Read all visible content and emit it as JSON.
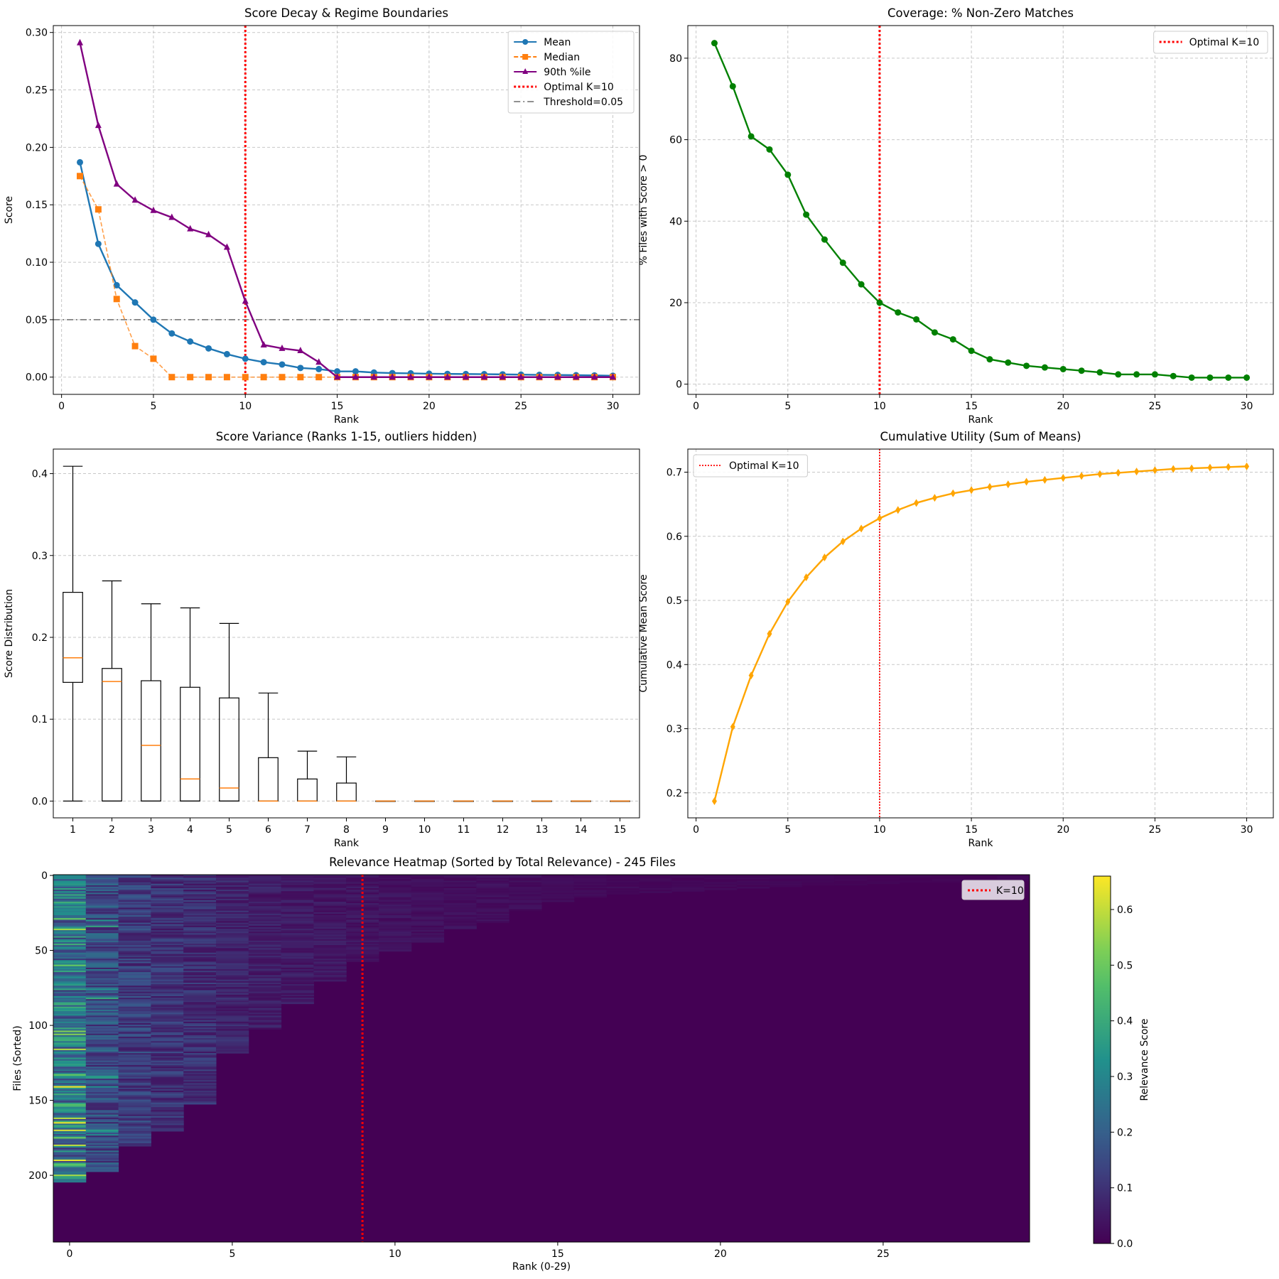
{
  "chart_data": [
    {
      "type": "line",
      "title": "Score Decay & Regime Boundaries",
      "xlabel": "Rank",
      "ylabel": "Score",
      "xlim": [
        -0.45,
        31.45
      ],
      "ylim": [
        -0.015,
        0.306
      ],
      "xticks": [
        0,
        5,
        10,
        15,
        20,
        25,
        30
      ],
      "yticks": [
        0.0,
        0.05,
        0.1,
        0.15,
        0.2,
        0.25,
        0.3
      ],
      "ytick_labels": [
        "0.00",
        "0.05",
        "0.10",
        "0.15",
        "0.20",
        "0.25",
        "0.30"
      ],
      "grid": true,
      "legend_position": "top-right",
      "x": [
        1,
        2,
        3,
        4,
        5,
        6,
        7,
        8,
        9,
        10,
        11,
        12,
        13,
        14,
        15,
        16,
        17,
        18,
        19,
        20,
        21,
        22,
        23,
        24,
        25,
        26,
        27,
        28,
        29,
        30
      ],
      "series": [
        {
          "name": "Mean",
          "color": "#1f77b4",
          "marker": "circle",
          "dash": "solid",
          "values": [
            0.187,
            0.116,
            0.08,
            0.065,
            0.05,
            0.038,
            0.031,
            0.025,
            0.02,
            0.016,
            0.013,
            0.011,
            0.008,
            0.007,
            0.005,
            0.005,
            0.004,
            0.0035,
            0.0033,
            0.003,
            0.0028,
            0.0027,
            0.0026,
            0.0024,
            0.0022,
            0.002,
            0.0019,
            0.0017,
            0.0015,
            0.0012
          ]
        },
        {
          "name": "Median",
          "color": "#ff7f0e",
          "marker": "square",
          "dash": "dashed",
          "values": [
            0.175,
            0.146,
            0.068,
            0.027,
            0.016,
            0,
            0,
            0,
            0,
            0,
            0,
            0,
            0,
            0,
            0,
            0,
            0,
            0,
            0,
            0,
            0,
            0,
            0,
            0,
            0,
            0,
            0,
            0,
            0,
            0
          ]
        },
        {
          "name": "90th %ile",
          "color": "#800080",
          "marker": "triangle",
          "dash": "solid",
          "values": [
            0.291,
            0.219,
            0.168,
            0.154,
            0.145,
            0.139,
            0.129,
            0.124,
            0.113,
            0.066,
            0.028,
            0.025,
            0.023,
            0.013,
            0,
            0,
            0,
            0,
            0,
            0,
            0,
            0,
            0,
            0,
            0,
            0,
            0,
            0,
            0,
            0
          ]
        }
      ],
      "vline": {
        "name": "Optimal K=10",
        "x": 10,
        "color": "#ff0000"
      },
      "hline": {
        "name": "Threshold=0.05",
        "y": 0.05,
        "color": "#808080"
      }
    },
    {
      "type": "line",
      "title": "Coverage: % Non-Zero Matches",
      "xlabel": "Rank",
      "ylabel": "% Files with Score > 0",
      "xlim": [
        -0.45,
        31.45
      ],
      "ylim": [
        -2.5,
        88
      ],
      "xticks": [
        0,
        5,
        10,
        15,
        20,
        25,
        30
      ],
      "yticks": [
        0,
        20,
        40,
        60,
        80
      ],
      "ytick_labels": [
        "0",
        "20",
        "40",
        "60",
        "80"
      ],
      "grid": true,
      "legend_position": "top-right",
      "x": [
        1,
        2,
        3,
        4,
        5,
        6,
        7,
        8,
        9,
        10,
        11,
        12,
        13,
        14,
        15,
        16,
        17,
        18,
        19,
        20,
        21,
        22,
        23,
        24,
        25,
        26,
        27,
        28,
        29,
        30
      ],
      "series": [
        {
          "color": "#008000",
          "marker": "circle",
          "values": [
            83.7,
            73.1,
            60.8,
            57.6,
            51.4,
            41.6,
            35.5,
            29.8,
            24.5,
            20.0,
            17.6,
            15.9,
            12.7,
            11.0,
            8.2,
            6.1,
            5.3,
            4.5,
            4.1,
            3.7,
            3.3,
            2.9,
            2.4,
            2.4,
            2.4,
            2.0,
            1.6,
            1.6,
            1.6,
            1.6
          ]
        }
      ],
      "vline": {
        "name": "Optimal K=10",
        "x": 10,
        "color": "#ff0000"
      }
    },
    {
      "type": "box",
      "title": "Score Variance (Ranks 1-15, outliers hidden)",
      "xlabel": "Rank",
      "ylabel": "Score Distribution",
      "categories": [
        "1",
        "2",
        "3",
        "4",
        "5",
        "6",
        "7",
        "8",
        "9",
        "10",
        "11",
        "12",
        "13",
        "14",
        "15"
      ],
      "ylim": [
        -0.0205,
        0.43
      ],
      "yticks": [
        0.0,
        0.1,
        0.2,
        0.3,
        0.4
      ],
      "ytick_labels": [
        "0.0",
        "0.1",
        "0.2",
        "0.3",
        "0.4"
      ],
      "grid": true,
      "median_color": "#ff7f0e",
      "boxes": [
        {
          "whisker_low": 0,
          "q1": 0.145,
          "median": 0.175,
          "q3": 0.255,
          "whisker_high": 0.409
        },
        {
          "whisker_low": 0,
          "q1": 0,
          "median": 0.146,
          "q3": 0.162,
          "whisker_high": 0.269
        },
        {
          "whisker_low": 0,
          "q1": 0,
          "median": 0.068,
          "q3": 0.147,
          "whisker_high": 0.241
        },
        {
          "whisker_low": 0,
          "q1": 0,
          "median": 0.027,
          "q3": 0.139,
          "whisker_high": 0.236
        },
        {
          "whisker_low": 0,
          "q1": 0,
          "median": 0.016,
          "q3": 0.126,
          "whisker_high": 0.217
        },
        {
          "whisker_low": 0,
          "q1": 0,
          "median": 0,
          "q3": 0.053,
          "whisker_high": 0.132
        },
        {
          "whisker_low": 0,
          "q1": 0,
          "median": 0,
          "q3": 0.027,
          "whisker_high": 0.061
        },
        {
          "whisker_low": 0,
          "q1": 0,
          "median": 0,
          "q3": 0.022,
          "whisker_high": 0.054
        },
        {
          "whisker_low": 0,
          "q1": 0,
          "median": 0,
          "q3": 0,
          "whisker_high": 0
        },
        {
          "whisker_low": 0,
          "q1": 0,
          "median": 0,
          "q3": 0,
          "whisker_high": 0
        },
        {
          "whisker_low": 0,
          "q1": 0,
          "median": 0,
          "q3": 0,
          "whisker_high": 0
        },
        {
          "whisker_low": 0,
          "q1": 0,
          "median": 0,
          "q3": 0,
          "whisker_high": 0
        },
        {
          "whisker_low": 0,
          "q1": 0,
          "median": 0,
          "q3": 0,
          "whisker_high": 0
        },
        {
          "whisker_low": 0,
          "q1": 0,
          "median": 0,
          "q3": 0,
          "whisker_high": 0
        },
        {
          "whisker_low": 0,
          "q1": 0,
          "median": 0,
          "q3": 0,
          "whisker_high": 0
        }
      ]
    },
    {
      "type": "line",
      "title": "Cumulative Utility (Sum of Means)",
      "xlabel": "Rank",
      "ylabel": "Cumulative Mean Score",
      "xlim": [
        -0.45,
        31.45
      ],
      "ylim": [
        0.161,
        0.736
      ],
      "xticks": [
        0,
        5,
        10,
        15,
        20,
        25,
        30
      ],
      "yticks": [
        0.2,
        0.3,
        0.4,
        0.5,
        0.6,
        0.7
      ],
      "ytick_labels": [
        "0.2",
        "0.3",
        "0.4",
        "0.5",
        "0.6",
        "0.7"
      ],
      "grid": true,
      "legend_position": "top-left",
      "x": [
        1,
        2,
        3,
        4,
        5,
        6,
        7,
        8,
        9,
        10,
        11,
        12,
        13,
        14,
        15,
        16,
        17,
        18,
        19,
        20,
        21,
        22,
        23,
        24,
        25,
        26,
        27,
        28,
        29,
        30
      ],
      "series": [
        {
          "color": "#ffa500",
          "marker": "diamond",
          "values": [
            0.187,
            0.303,
            0.383,
            0.448,
            0.498,
            0.536,
            0.567,
            0.592,
            0.612,
            0.628,
            0.641,
            0.652,
            0.66,
            0.667,
            0.672,
            0.677,
            0.681,
            0.685,
            0.688,
            0.691,
            0.694,
            0.697,
            0.699,
            0.701,
            0.703,
            0.705,
            0.706,
            0.707,
            0.708,
            0.709
          ]
        }
      ],
      "vline": {
        "name": "Optimal K=10",
        "x": 10,
        "color": "#ff0000"
      }
    },
    {
      "type": "heatmap",
      "title": "Relevance Heatmap (Sorted by Total Relevance) - 245 Files",
      "xlabel": "Rank (0-29)",
      "ylabel": "Files (Sorted)",
      "n_files": 245,
      "n_ranks": 30,
      "xticks": [
        0,
        5,
        10,
        15,
        20,
        25
      ],
      "yticks": [
        0,
        50,
        100,
        150,
        200
      ],
      "vline": {
        "name": "K=10",
        "x": 9,
        "color": "#ff0000"
      },
      "legend_position": "top-right",
      "colorbar": {
        "label": "Relevance Score",
        "min": 0.0,
        "max": 0.66,
        "ticks": [
          0.0,
          0.1,
          0.2,
          0.3,
          0.4,
          0.5,
          0.6
        ],
        "tick_labels": [
          "0.0",
          "0.1",
          "0.2",
          "0.3",
          "0.4",
          "0.5",
          "0.6"
        ],
        "colormap": "viridis"
      },
      "nonzero_files_per_rank": [
        205,
        198,
        181,
        171,
        153,
        119,
        103,
        86,
        71,
        58,
        51,
        45,
        36,
        32,
        24,
        18,
        15,
        13,
        12,
        11,
        10,
        9,
        8,
        7,
        7,
        6,
        5,
        5,
        4,
        4
      ]
    }
  ]
}
